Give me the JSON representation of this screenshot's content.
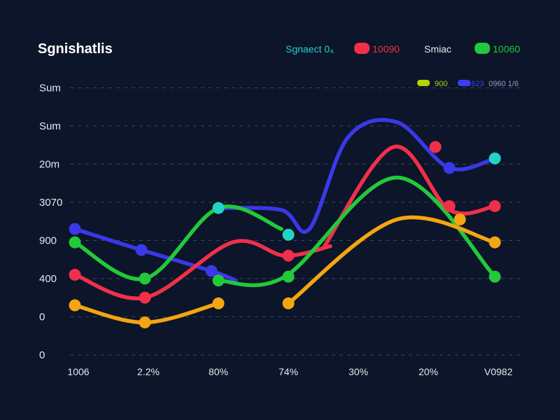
{
  "colors": {
    "background": "#0c1529",
    "grid": "#3a4560",
    "text": "#e6e9f0"
  },
  "chart_data": {
    "type": "line",
    "title": "Sgnishatlis",
    "xlabel": "",
    "ylabel": "",
    "grid": true,
    "legend_position": "top-right",
    "y_tick_labels": [
      "Sum",
      "Sum",
      "20m",
      "3070",
      "900",
      "400",
      "0",
      "0"
    ],
    "x_tick_labels": [
      "1006",
      "2.2%",
      "80%",
      "74%",
      "30%",
      "20%",
      "V0982"
    ],
    "x": [
      0,
      1,
      2,
      3,
      4,
      5,
      6
    ],
    "ylim": [
      0,
      7
    ],
    "legend": [
      {
        "label": "Sgnaect 0₄",
        "color": "#22d3c5",
        "text_color": "#22d3c5"
      },
      {
        "label": "10090",
        "color": "#f0304a",
        "text_color": "#f0304a"
      },
      {
        "label": "Smiac",
        "color": "#8aa0c8",
        "text_color": "#e6e9f0"
      },
      {
        "label": "10060",
        "color": "#22c93a",
        "text_color": "#22c93a"
      }
    ],
    "legend_secondary": [
      {
        "label": "900",
        "color": "#b8d400"
      },
      {
        "label": "1623",
        "color": "#3f3df0"
      },
      {
        "label": "0960 1/6",
        "color": "#8aa0c8"
      }
    ],
    "series": [
      {
        "color": "#3a38e8",
        "segments": [
          [
            [
              -0.05,
              3.3
            ],
            [
              0.9,
              2.75
            ],
            [
              1.9,
              2.2
            ],
            [
              2.25,
              1.95
            ]
          ],
          [
            [
              2.0,
              3.85
            ],
            [
              2.9,
              3.8
            ],
            [
              3.3,
              3.3
            ],
            [
              3.85,
              5.7
            ],
            [
              4.55,
              6.1
            ],
            [
              5.3,
              4.9
            ],
            [
              5.95,
              5.15
            ]
          ]
        ],
        "markers": [
          [
            -0.05,
            3.3
          ],
          [
            0.9,
            2.75
          ],
          [
            1.9,
            2.2
          ],
          [
            5.3,
            4.9
          ],
          [
            5.95,
            5.15
          ]
        ],
        "marker_color": "#3a38e8"
      },
      {
        "color": "#22d3c5",
        "segments": [],
        "markers": [
          [
            2.0,
            3.85
          ],
          [
            3.0,
            3.15
          ],
          [
            5.95,
            5.15
          ]
        ],
        "marker_color": "#22d3c5"
      },
      {
        "color": "#f0304a",
        "segments": [
          [
            [
              -0.05,
              2.1
            ],
            [
              0.95,
              1.5
            ],
            [
              2.2,
              2.95
            ],
            [
              2.95,
              2.6
            ],
            [
              3.6,
              2.85
            ]
          ],
          [
            [
              3.5,
              2.8
            ],
            [
              4.5,
              5.45
            ],
            [
              5.3,
              3.8
            ],
            [
              5.95,
              3.9
            ]
          ]
        ],
        "markers": [
          [
            -0.05,
            2.1
          ],
          [
            0.95,
            1.5
          ],
          [
            3.0,
            2.6
          ],
          [
            5.1,
            5.45
          ],
          [
            5.3,
            3.9
          ],
          [
            5.95,
            3.9
          ]
        ],
        "marker_color": "#f0304a"
      },
      {
        "color": "#22c93a",
        "segments": [
          [
            [
              -0.05,
              2.95
            ],
            [
              0.95,
              2.0
            ],
            [
              2.0,
              3.85
            ],
            [
              2.9,
              3.3
            ]
          ],
          [
            [
              2.0,
              1.95
            ],
            [
              2.95,
              2.05
            ],
            [
              4.55,
              4.65
            ],
            [
              5.95,
              2.05
            ]
          ]
        ],
        "markers": [
          [
            -0.05,
            2.95
          ],
          [
            0.95,
            2.0
          ],
          [
            2.0,
            1.95
          ],
          [
            3.0,
            2.05
          ],
          [
            5.95,
            2.05
          ]
        ],
        "marker_color": "#22c93a"
      },
      {
        "color": "#f5a511",
        "segments": [
          [
            [
              -0.05,
              1.3
            ],
            [
              0.95,
              0.85
            ],
            [
              2.0,
              1.35
            ]
          ],
          [
            [
              3.0,
              1.35
            ],
            [
              4.55,
              3.55
            ],
            [
              5.95,
              2.95
            ]
          ]
        ],
        "markers": [
          [
            -0.05,
            1.3
          ],
          [
            0.95,
            0.85
          ],
          [
            2.0,
            1.35
          ],
          [
            3.0,
            1.35
          ],
          [
            5.45,
            3.55
          ],
          [
            5.95,
            2.95
          ]
        ],
        "marker_color": "#f5a511"
      }
    ]
  }
}
